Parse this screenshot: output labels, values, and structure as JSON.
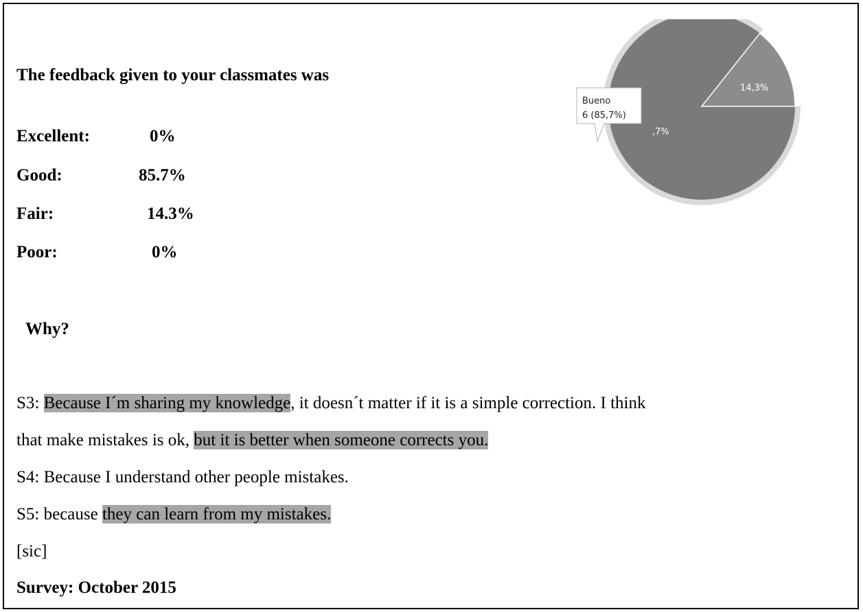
{
  "question": "The feedback given to your classmates was",
  "results": [
    {
      "label": "Excellent:",
      "value": "0%"
    },
    {
      "label": "Good:",
      "value": "85.7%"
    },
    {
      "label": "Fair:",
      "value": "14.3%"
    },
    {
      "label": "Poor:",
      "value": "0%"
    }
  ],
  "why_heading": "Why?",
  "responses": {
    "s3": {
      "prefix": "S3: ",
      "highlight1": "Because I´m sharing my knowledge",
      "middle": ", it doesn´t matter if it is a simple correction. I think",
      "line2_plain": "that make mistakes is ok, ",
      "highlight2": "but it is better when someone corrects you."
    },
    "s4": "S4: Because I understand other people mistakes.",
    "s5": {
      "prefix": "S5: because ",
      "highlight": "they can learn from my mistakes."
    }
  },
  "sic": "[sic]",
  "survey": "Survey: October 2015",
  "chart_data": {
    "type": "pie",
    "slices": [
      {
        "label": "Bueno",
        "count": 6,
        "percent": 85.7,
        "slice_label": "85,7%",
        "color": "#7a7a7a"
      },
      {
        "label": "",
        "percent": 14.3,
        "slice_label": "14,3%",
        "color": "#8c8c8c"
      }
    ],
    "tooltip": {
      "title": "Bueno",
      "value": "6 (85,7%)"
    },
    "slice_label_partial": ",7%"
  }
}
